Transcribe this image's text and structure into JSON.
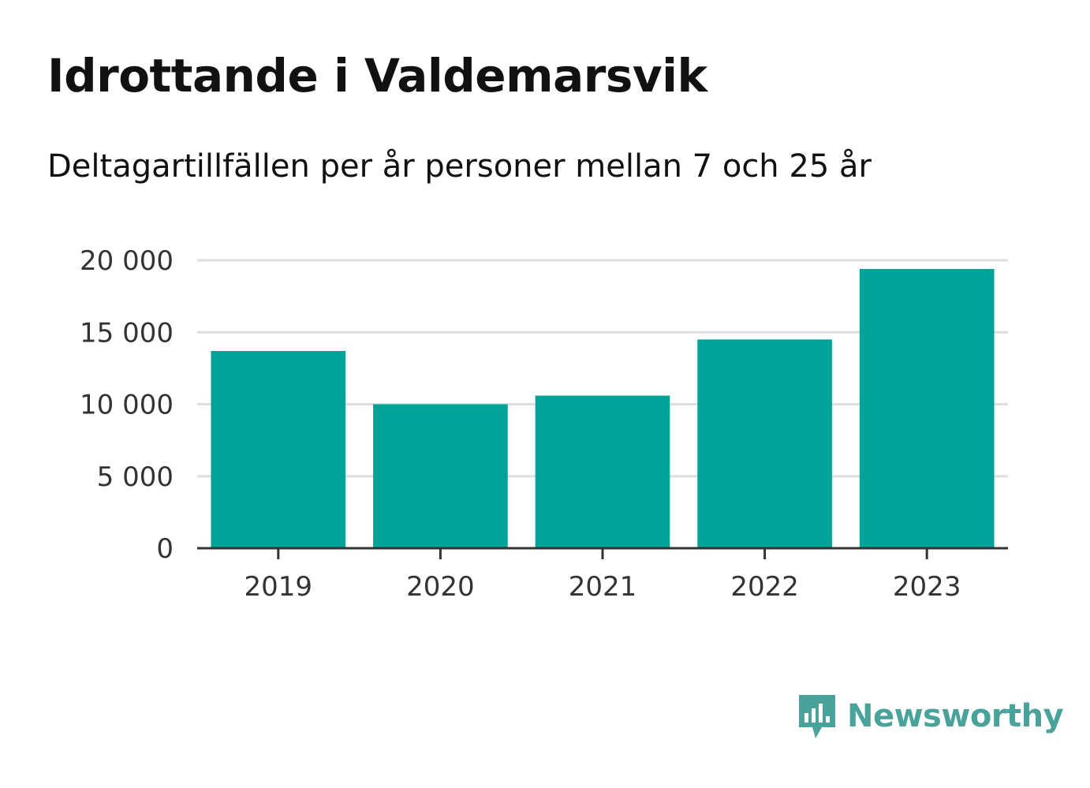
{
  "title": "Idrottande i Valdemarsvik",
  "subtitle": "Deltagartillfällen per år personer mellan 7 och 25 år",
  "brand": {
    "name": "Newsworthy",
    "color": "#4aa39b",
    "icon": "newsworthy-logo-icon"
  },
  "colors": {
    "bar": "#00a398",
    "grid": "#dddddd",
    "axis": "#333333"
  },
  "chart_data": {
    "type": "bar",
    "categories": [
      "2019",
      "2020",
      "2021",
      "2022",
      "2023"
    ],
    "values": [
      13700,
      10000,
      10600,
      14500,
      19400
    ],
    "ylim": [
      0,
      20000
    ],
    "yticks": [
      0,
      5000,
      10000,
      15000,
      20000
    ],
    "ytick_labels": [
      "0",
      "5 000",
      "10 000",
      "15 000",
      "20 000"
    ],
    "grid": true,
    "legend": "none"
  }
}
